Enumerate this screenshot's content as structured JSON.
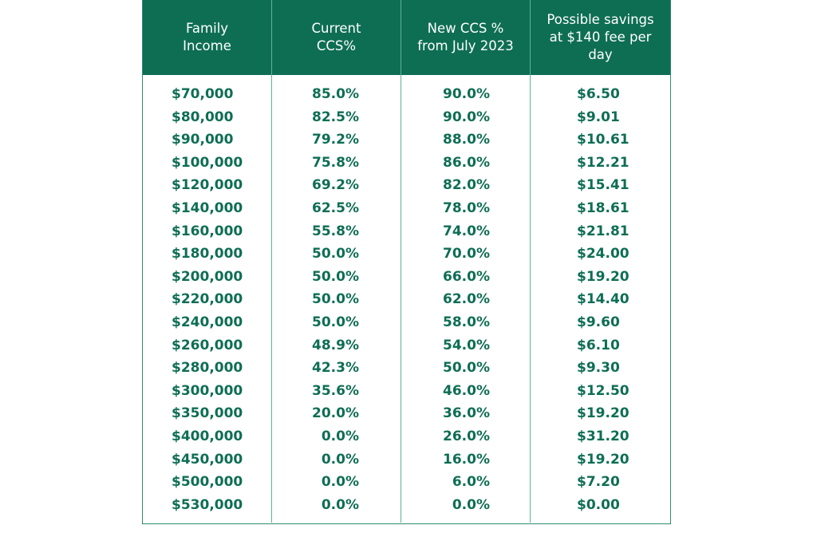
{
  "table": {
    "headers": [
      "Family\nIncome",
      "Current\nCCS%",
      "New CCS %\nfrom July 2023",
      "Possible savings\nat $140 fee per\nday"
    ],
    "rows": [
      [
        "$70,000",
        "85.0%",
        "90.0%",
        "$6.50"
      ],
      [
        "$80,000",
        "82.5%",
        "90.0%",
        "$9.01"
      ],
      [
        "$90,000",
        "79.2%",
        "88.0%",
        "$10.61"
      ],
      [
        "$100,000",
        "75.8%",
        "86.0%",
        "$12.21"
      ],
      [
        "$120,000",
        "69.2%",
        "82.0%",
        "$15.41"
      ],
      [
        "$140,000",
        "62.5%",
        "78.0%",
        "$18.61"
      ],
      [
        "$160,000",
        "55.8%",
        "74.0%",
        "$21.81"
      ],
      [
        "$180,000",
        "50.0%",
        "70.0%",
        "$24.00"
      ],
      [
        "$200,000",
        "50.0%",
        "66.0%",
        "$19.20"
      ],
      [
        "$220,000",
        "50.0%",
        "62.0%",
        "$14.40"
      ],
      [
        "$240,000",
        "50.0%",
        "58.0%",
        "$9.60"
      ],
      [
        "$260,000",
        "48.9%",
        "54.0%",
        "$6.10"
      ],
      [
        "$280,000",
        "42.3%",
        "50.0%",
        "$9.30"
      ],
      [
        "$300,000",
        "35.6%",
        "46.0%",
        "$12.50"
      ],
      [
        "$350,000",
        "20.0%",
        "36.0%",
        "$19.20"
      ],
      [
        "$400,000",
        "0.0%",
        "26.0%",
        "$31.20"
      ],
      [
        "$450,000",
        "0.0%",
        "16.0%",
        "$19.20"
      ],
      [
        "$500,000",
        "0.0%",
        "6.0%",
        "$7.20"
      ],
      [
        "$530,000",
        "0.0%",
        "0.0%",
        "$0.00"
      ]
    ],
    "colors": {
      "header_bg": "#0e6e54",
      "header_text": "#ffffff",
      "cell_text": "#0e6e54",
      "border": "#5bb39a"
    }
  }
}
